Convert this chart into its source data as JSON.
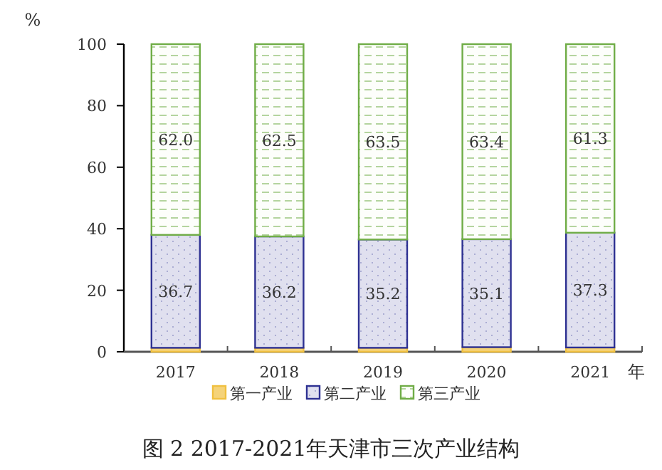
{
  "chart_data": {
    "type": "bar",
    "stacked": true,
    "title": "图 2 2017-2021年天津市三次产业结构",
    "xlabel": "年",
    "ylabel": "%",
    "categories": [
      "2017",
      "2018",
      "2019",
      "2020",
      "2021"
    ],
    "series": [
      {
        "name": "第一产业",
        "color": "#f0c040",
        "values": [
          1.3,
          1.3,
          1.3,
          1.5,
          1.4
        ]
      },
      {
        "name": "第二产业",
        "color": "#2e3192",
        "values": [
          36.7,
          36.2,
          35.2,
          35.1,
          37.3
        ],
        "value_labels": [
          "36.7",
          "36.2",
          "35.2",
          "35.1",
          "37.3"
        ]
      },
      {
        "name": "第三产业",
        "color": "#70ad47",
        "values": [
          62.0,
          62.5,
          63.5,
          63.4,
          61.3
        ],
        "value_labels": [
          "62.0",
          "62.5",
          "63.5",
          "63.4",
          "61.3"
        ]
      }
    ],
    "ylim": [
      0,
      100
    ],
    "yticks": [
      0,
      20,
      40,
      60,
      80,
      100
    ],
    "legend": "bottom"
  }
}
